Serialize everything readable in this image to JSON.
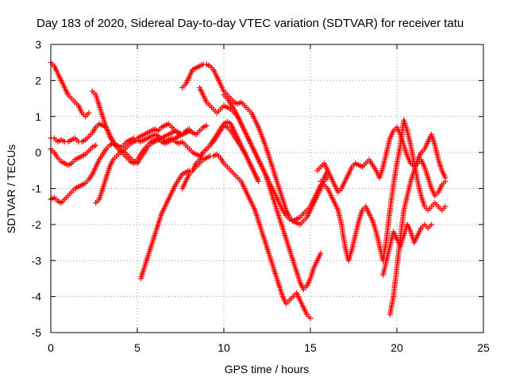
{
  "chart_data": {
    "type": "scatter",
    "title": "Day 183 of 2020, Sidereal Day-to-day VTEC variation (SDTVAR) for receiver tatu",
    "xlabel": "GPS time / hours",
    "ylabel": "SDTVAR / TECUs",
    "xlim": [
      0,
      25
    ],
    "ylim": [
      -5,
      3
    ],
    "xticks": [
      "0",
      "5",
      "10",
      "15",
      "20",
      "25"
    ],
    "yticks": [
      "3",
      "2",
      "1",
      "0",
      "-1",
      "-2",
      "-3",
      "-4",
      "-5"
    ],
    "grid": true,
    "marker": "+",
    "color": "#ff0000",
    "series": [
      {
        "x": [
          0.0,
          0.2,
          0.4,
          0.6,
          0.8,
          1.0,
          1.2,
          1.4,
          1.6,
          1.8,
          2.0,
          2.2
        ],
        "y": [
          2.5,
          2.4,
          2.2,
          2.0,
          1.8,
          1.6,
          1.5,
          1.4,
          1.3,
          1.1,
          1.0,
          1.1
        ]
      },
      {
        "x": [
          0.0,
          0.2,
          0.4,
          0.6,
          0.8,
          1.0,
          1.2,
          1.4,
          1.6,
          1.8,
          2.0,
          2.2,
          2.4,
          2.6,
          2.8,
          3.0,
          3.2,
          3.4,
          3.6,
          3.8,
          4.0,
          4.2,
          4.4,
          4.6,
          4.8,
          5.0,
          5.2,
          5.4,
          5.6,
          5.8,
          6.0,
          6.2,
          6.4,
          6.6,
          6.8,
          7.0,
          7.2,
          7.4,
          7.6,
          7.8,
          8.0
        ],
        "y": [
          0.4,
          0.4,
          0.3,
          0.35,
          0.3,
          0.3,
          0.35,
          0.4,
          0.3,
          0.3,
          0.35,
          0.45,
          0.55,
          0.7,
          0.8,
          0.75,
          0.7,
          0.5,
          0.3,
          0.2,
          0.1,
          0.2,
          0.3,
          0.35,
          0.4,
          0.4,
          0.45,
          0.5,
          0.55,
          0.6,
          0.65,
          0.6,
          0.7,
          0.75,
          0.8,
          0.7,
          0.6,
          0.5,
          0.5,
          0.6,
          0.65
        ]
      },
      {
        "x": [
          0.0,
          0.2,
          0.4,
          0.6,
          0.8,
          1.0,
          1.2,
          1.4,
          1.6,
          1.8,
          2.0,
          2.2,
          2.4,
          2.6
        ],
        "y": [
          0.1,
          0.0,
          -0.15,
          -0.25,
          -0.3,
          -0.35,
          -0.3,
          -0.2,
          -0.15,
          -0.1,
          -0.05,
          0.05,
          0.15,
          0.2
        ]
      },
      {
        "x": [
          0.0,
          0.2,
          0.4,
          0.6,
          0.8,
          1.0,
          1.2,
          1.4,
          1.6,
          1.8,
          2.0,
          2.2,
          2.4,
          2.6,
          2.8,
          3.0,
          3.2,
          3.4,
          3.6,
          3.8,
          4.0,
          4.2,
          4.4,
          4.6,
          4.8,
          5.0,
          5.2,
          5.4,
          5.6,
          5.8,
          6.0,
          6.2,
          6.4,
          6.6,
          6.8,
          7.0,
          7.2,
          7.4,
          7.6,
          7.8,
          8.0
        ],
        "y": [
          -1.3,
          -1.25,
          -1.35,
          -1.4,
          -1.3,
          -1.2,
          -1.1,
          -1.0,
          -0.95,
          -0.9,
          -0.85,
          -0.75,
          -0.6,
          -0.4,
          -0.2,
          -0.05,
          0.1,
          0.2,
          0.25,
          0.2,
          0.15,
          0.05,
          -0.05,
          -0.15,
          -0.25,
          -0.3,
          -0.15,
          0.0,
          0.15,
          0.25,
          0.3,
          0.35,
          0.4,
          0.45,
          0.5,
          0.55,
          0.6,
          0.55,
          0.5,
          0.55,
          0.6
        ]
      },
      {
        "x": [
          2.4,
          2.6,
          2.8,
          3.0,
          3.2,
          3.4,
          3.6,
          3.8,
          4.0,
          4.2,
          4.4,
          4.6,
          4.8,
          5.0,
          5.2,
          5.4,
          5.6,
          5.8,
          6.0,
          6.2,
          6.4,
          6.6,
          6.8,
          7.0,
          7.2,
          7.4,
          7.6,
          7.8,
          8.0,
          8.2,
          8.4,
          8.6,
          8.8,
          9.0
        ],
        "y": [
          1.7,
          1.6,
          1.3,
          1.0,
          0.7,
          0.45,
          0.3,
          0.15,
          0.05,
          -0.05,
          -0.15,
          -0.25,
          -0.3,
          -0.2,
          -0.05,
          0.1,
          0.2,
          0.3,
          0.35,
          0.4,
          0.3,
          0.25,
          0.3,
          0.35,
          0.4,
          0.45,
          0.5,
          0.55,
          0.6,
          0.55,
          0.5,
          0.6,
          0.7,
          0.75
        ]
      },
      {
        "x": [
          2.6,
          2.8,
          3.0,
          3.2,
          3.4,
          3.6,
          3.8,
          4.0,
          4.2,
          4.4,
          4.6,
          4.8,
          5.0,
          5.2,
          5.4,
          5.6,
          5.8,
          6.0,
          6.2,
          6.4,
          6.6,
          6.8,
          7.0,
          7.2,
          7.4,
          7.6,
          7.8,
          8.0,
          8.2,
          8.4,
          8.6,
          8.8,
          9.0,
          9.2,
          9.4,
          9.6,
          9.8,
          10.0,
          10.2,
          10.4,
          10.6,
          10.8,
          11.0,
          11.2,
          11.4,
          11.6,
          11.8,
          12.0
        ],
        "y": [
          -1.4,
          -1.3,
          -1.0,
          -0.7,
          -0.4,
          -0.2,
          -0.1,
          0.0,
          0.05,
          0.15,
          0.25,
          0.3,
          0.35,
          0.3,
          0.35,
          0.4,
          0.45,
          0.5,
          0.45,
          0.4,
          0.3,
          0.35,
          0.4,
          0.3,
          0.25,
          0.3,
          0.2,
          0.1,
          0.0,
          -0.05,
          -0.1,
          0.0,
          0.1,
          0.2,
          0.3,
          0.45,
          0.6,
          0.75,
          0.7,
          0.6,
          0.45,
          0.3,
          0.15,
          0.0,
          -0.2,
          -0.4,
          -0.6,
          -0.8
        ]
      },
      {
        "x": [
          5.2,
          5.4,
          5.6,
          5.8,
          6.0,
          6.2,
          6.4,
          6.6,
          6.8,
          7.0,
          7.2,
          7.4,
          7.6,
          7.8,
          8.0,
          8.2,
          8.4,
          8.6,
          8.8,
          9.0,
          9.2,
          9.4,
          9.6,
          9.8,
          10.0,
          10.2,
          10.4,
          10.6,
          10.8,
          11.0,
          11.2,
          11.4,
          11.6,
          11.8,
          12.0,
          12.2,
          12.4,
          12.6,
          12.8,
          13.0,
          13.2,
          13.4,
          13.6,
          13.8,
          14.0,
          14.2,
          14.4,
          14.6,
          14.8,
          15.0
        ],
        "y": [
          -3.5,
          -3.2,
          -2.9,
          -2.6,
          -2.3,
          -2.0,
          -1.7,
          -1.5,
          -1.3,
          -1.1,
          -0.9,
          -0.75,
          -0.6,
          -0.55,
          -0.5,
          -0.5,
          -0.4,
          -0.3,
          -0.2,
          -0.15,
          -0.1,
          -0.1,
          -0.05,
          -0.15,
          -0.3,
          -0.4,
          -0.5,
          -0.6,
          -0.7,
          -0.8,
          -1.0,
          -1.2,
          -1.4,
          -1.6,
          -1.9,
          -2.2,
          -2.5,
          -2.8,
          -3.1,
          -3.4,
          -3.7,
          -4.0,
          -4.2,
          -4.1,
          -4.0,
          -3.9,
          -4.1,
          -4.3,
          -4.5,
          -4.6
        ]
      },
      {
        "x": [
          7.6,
          7.8,
          8.0,
          8.2,
          8.4,
          8.6,
          8.8,
          9.0,
          9.2,
          9.4,
          9.6,
          9.8,
          10.0,
          10.2,
          10.4,
          10.6,
          10.8,
          11.0,
          11.2,
          11.4,
          11.6,
          11.8,
          12.0
        ],
        "y": [
          -1.0,
          -0.8,
          -0.6,
          -0.5,
          -0.3,
          -0.2,
          0.0,
          0.1,
          0.2,
          0.35,
          0.5,
          0.65,
          0.8,
          0.85,
          0.8,
          0.6,
          0.4,
          0.2,
          0.0,
          -0.2,
          -0.4,
          -0.6,
          -0.8
        ]
      },
      {
        "x": [
          7.6,
          7.8,
          8.0,
          8.2,
          8.4,
          8.6,
          8.8,
          9.0,
          9.2,
          9.4,
          9.6,
          9.8,
          10.0,
          10.2,
          10.4,
          10.6,
          10.8,
          11.0,
          11.2,
          11.4,
          11.6,
          11.8,
          12.0,
          12.2,
          12.4,
          12.6,
          12.8,
          13.0,
          13.2,
          13.4,
          13.6,
          13.8,
          14.0,
          14.2,
          14.4,
          14.6,
          14.8,
          15.0,
          15.2,
          15.4,
          15.6,
          15.8,
          16.0
        ],
        "y": [
          1.8,
          1.9,
          2.1,
          2.3,
          2.35,
          2.4,
          2.45,
          2.45,
          2.4,
          2.3,
          2.1,
          1.9,
          1.7,
          1.6,
          1.5,
          1.4,
          1.35,
          1.4,
          1.3,
          1.2,
          1.1,
          0.9,
          0.7,
          0.45,
          0.2,
          -0.1,
          -0.4,
          -0.7,
          -1.0,
          -1.3,
          -1.6,
          -1.8,
          -1.9,
          -1.85,
          -1.8,
          -1.7,
          -1.6,
          -1.5,
          -1.3,
          -1.1,
          -0.9,
          -0.8,
          -0.7
        ]
      },
      {
        "x": [
          8.6,
          8.8,
          9.0,
          9.2,
          9.4,
          9.6,
          9.8,
          10.0,
          10.2,
          10.4,
          10.6,
          10.8,
          11.0,
          11.2,
          11.4,
          11.6,
          11.8,
          12.0,
          12.2,
          12.4,
          12.6,
          12.8,
          13.0,
          13.2,
          13.4,
          13.6,
          13.8,
          14.0,
          14.2,
          14.4,
          14.6,
          14.8,
          15.0,
          15.2,
          15.4,
          15.6
        ],
        "y": [
          1.8,
          1.6,
          1.4,
          1.3,
          1.2,
          1.1,
          1.2,
          1.3,
          1.25,
          1.2,
          1.1,
          1.0,
          0.8,
          0.6,
          0.4,
          0.2,
          0.0,
          -0.2,
          -0.4,
          -0.6,
          -0.9,
          -1.2,
          -1.5,
          -1.8,
          -2.1,
          -2.4,
          -2.7,
          -3.0,
          -3.3,
          -3.6,
          -3.8,
          -3.7,
          -3.5,
          -3.2,
          -3.0,
          -2.8
        ]
      },
      {
        "x": [
          10.0,
          10.2,
          10.4,
          10.6,
          10.8,
          11.0,
          11.2,
          11.4,
          11.6,
          11.8,
          12.0,
          12.2,
          12.4,
          12.6,
          12.8,
          13.0,
          13.2,
          13.4,
          13.6,
          13.8,
          14.0,
          14.2,
          14.4,
          14.6,
          14.8,
          15.0,
          15.2,
          15.4,
          15.6,
          15.8,
          16.0
        ],
        "y": [
          1.6,
          1.5,
          1.35,
          1.2,
          1.0,
          0.8,
          0.6,
          0.4,
          0.2,
          0.0,
          -0.2,
          -0.4,
          -0.6,
          -0.8,
          -1.0,
          -1.2,
          -1.4,
          -1.6,
          -1.75,
          -1.85,
          -1.9,
          -1.95,
          -2.0,
          -1.9,
          -1.8,
          -1.6,
          -1.4,
          -1.2,
          -1.0,
          -0.7,
          -0.5
        ]
      },
      {
        "x": [
          15.4,
          15.6,
          15.8,
          16.0,
          16.2,
          16.4,
          16.6,
          16.8,
          17.0,
          17.2,
          17.4,
          17.6,
          17.8,
          18.0,
          18.2,
          18.4,
          18.6,
          18.8,
          19.0,
          19.2,
          19.4,
          19.6,
          19.8,
          20.0,
          20.2,
          20.4,
          20.6,
          20.8,
          21.0,
          21.2,
          21.4,
          21.6,
          21.8,
          22.0,
          22.2,
          22.4,
          22.6,
          22.8
        ],
        "y": [
          -0.5,
          -0.4,
          -0.3,
          -0.5,
          -0.7,
          -0.9,
          -1.1,
          -1.0,
          -0.8,
          -0.6,
          -0.4,
          -0.3,
          -0.35,
          -0.4,
          -0.3,
          -0.2,
          -0.35,
          -0.5,
          -0.7,
          -0.4,
          0.0,
          0.4,
          0.6,
          0.7,
          0.5,
          0.2,
          -0.1,
          -0.3,
          -0.4,
          -0.3,
          -0.2,
          -0.4,
          -0.7,
          -1.0,
          -1.2,
          -1.1,
          -0.9,
          -0.8
        ]
      },
      {
        "x": [
          15.6,
          15.8,
          16.0,
          16.2,
          16.4,
          16.6,
          16.8,
          17.0,
          17.2,
          17.4,
          17.6,
          17.8,
          18.0,
          18.2,
          18.4,
          18.6,
          18.8,
          19.0,
          19.2,
          19.4,
          19.6,
          19.8,
          20.0,
          20.2,
          20.4,
          20.6,
          20.8,
          21.0,
          21.2,
          21.4,
          21.6,
          21.8,
          22.0,
          22.2,
          22.4,
          22.6,
          22.8
        ],
        "y": [
          -0.8,
          -0.9,
          -1.0,
          -1.2,
          -1.4,
          -1.6,
          -2.0,
          -2.6,
          -3.0,
          -2.7,
          -2.3,
          -1.9,
          -1.6,
          -1.5,
          -1.7,
          -1.9,
          -2.2,
          -2.6,
          -3.0,
          -2.4,
          -1.6,
          -0.9,
          -0.3,
          0.2,
          0.9,
          0.6,
          0.2,
          -0.3,
          -0.8,
          -1.2,
          -1.5,
          -1.6,
          -1.5,
          -1.4,
          -1.5,
          -1.6,
          -1.5
        ]
      },
      {
        "x": [
          19.6,
          19.8,
          20.0,
          20.2,
          20.4,
          20.6,
          20.8,
          21.0,
          21.2,
          21.4,
          21.6,
          21.8,
          22.0,
          22.2,
          22.4,
          22.6,
          22.8
        ],
        "y": [
          -4.5,
          -4.0,
          -3.2,
          -2.4,
          -1.6,
          -1.2,
          -0.8,
          -0.5,
          -0.2,
          0.0,
          0.1,
          0.3,
          0.5,
          0.2,
          -0.2,
          -0.5,
          -0.7
        ]
      },
      {
        "x": [
          19.2,
          19.4,
          19.6,
          19.8,
          20.0,
          20.2,
          20.4,
          20.6,
          20.8,
          21.0,
          21.2,
          21.4,
          21.6,
          21.8,
          22.0
        ],
        "y": [
          -3.4,
          -3.0,
          -2.6,
          -2.2,
          -2.4,
          -2.6,
          -2.3,
          -2.0,
          -2.2,
          -2.5,
          -2.3,
          -2.1,
          -2.0,
          -2.1,
          -2.0
        ]
      }
    ]
  }
}
